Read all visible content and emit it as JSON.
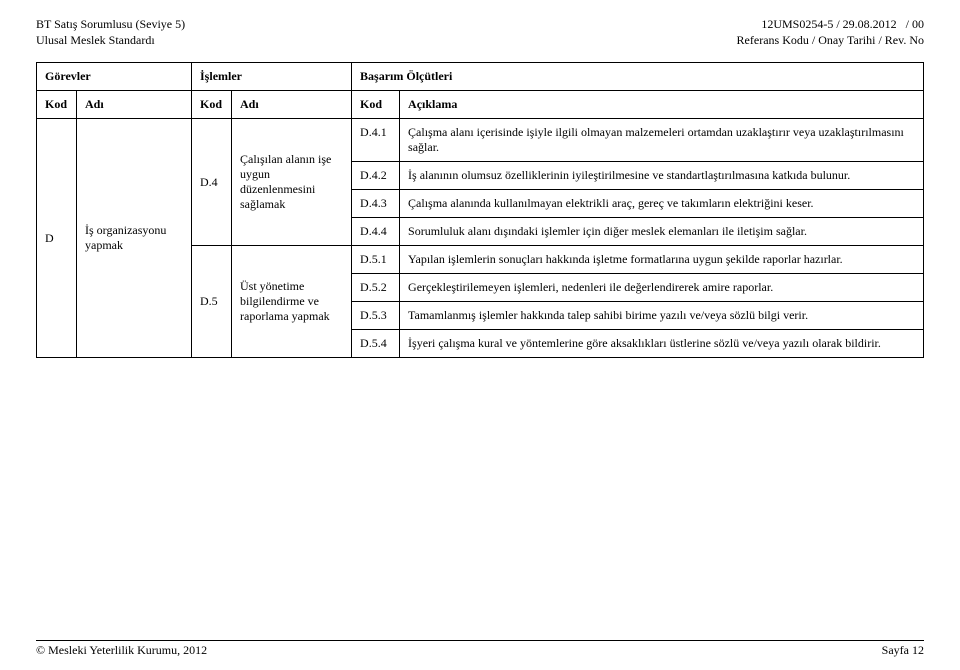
{
  "header": {
    "left_line1": "BT Satış Sorumlusu (Seviye 5)",
    "left_line2": "Ulusal Meslek Standardı",
    "right_line1": "12UMS0254-5 / 29.08.2012   / 00",
    "right_line2": "Referans Kodu / Onay Tarihi / Rev. No"
  },
  "section_headers": {
    "gorevler": "Görevler",
    "islemler": "İşlemler",
    "basarim": "Başarım Ölçütleri",
    "kod": "Kod",
    "adi": "Adı",
    "aciklama": "Açıklama"
  },
  "task": {
    "kod": "D",
    "adi": "İş organizasyonu yapmak"
  },
  "ops": [
    {
      "kod": "D.4",
      "adi": "Çalışılan alanın işe uygun düzenlenmesini sağlamak",
      "items": [
        {
          "kod": "D.4.1",
          "text": "Çalışma alanı içerisinde işiyle ilgili olmayan malzemeleri ortamdan uzaklaştırır veya uzaklaştırılmasını sağlar."
        },
        {
          "kod": "D.4.2",
          "text": "İş alanının olumsuz özelliklerinin iyileştirilmesine ve standartlaştırılmasına katkıda bulunur."
        },
        {
          "kod": "D.4.3",
          "text": "Çalışma alanında kullanılmayan elektrikli araç, gereç ve takımların elektriğini keser."
        },
        {
          "kod": "D.4.4",
          "text": "Sorumluluk alanı dışındaki işlemler için diğer meslek elemanları ile iletişim sağlar."
        }
      ]
    },
    {
      "kod": "D.5",
      "adi": "Üst yönetime bilgilendirme ve raporlama yapmak",
      "items": [
        {
          "kod": "D.5.1",
          "text": "Yapılan işlemlerin sonuçları hakkında işletme formatlarına uygun şekilde raporlar hazırlar."
        },
        {
          "kod": "D.5.2",
          "text": "Gerçekleştirilemeyen işlemleri, nedenleri ile değerlendirerek amire raporlar."
        },
        {
          "kod": "D.5.3",
          "text": "Tamamlanmış işlemler hakkında talep sahibi birime yazılı ve/veya sözlü bilgi verir."
        },
        {
          "kod": "D.5.4",
          "text": "İşyeri çalışma kural ve yöntemlerine göre aksaklıkları üstlerine sözlü ve/veya yazılı olarak bildirir."
        }
      ]
    }
  ],
  "footer": {
    "left": "© Mesleki Yeterlilik Kurumu, 2012",
    "right": "Sayfa 12"
  }
}
